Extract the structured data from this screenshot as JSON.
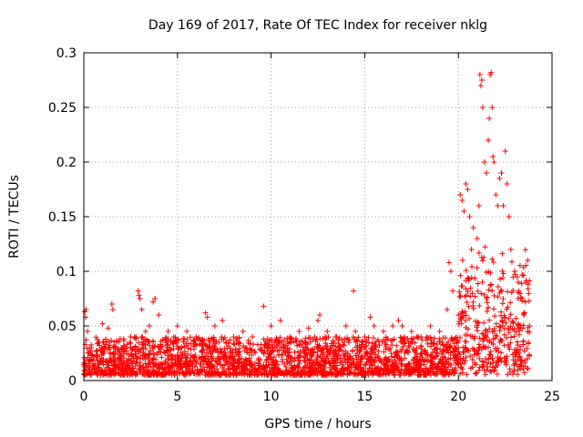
{
  "chart_data": {
    "type": "scatter",
    "title": "Day 169 of 2017, Rate Of TEC Index for receiver nklg",
    "xlabel": "GPS time / hours",
    "ylabel": "ROTI / TECUs",
    "xlim": [
      0,
      25
    ],
    "ylim": [
      0,
      0.3
    ],
    "x_ticks": [
      0,
      5,
      10,
      15,
      20,
      25
    ],
    "y_ticks": [
      0,
      0.05,
      0.1,
      0.15,
      0.2,
      0.25,
      0.3
    ],
    "x_tick_labels": [
      "0",
      "5",
      "10",
      "15",
      "20",
      "25"
    ],
    "y_tick_labels": [
      "0",
      "0.05",
      "0.1",
      "0.15",
      "0.2",
      "0.25",
      "0.3"
    ],
    "grid": true,
    "marker": "+",
    "marker_color": "#ff0000",
    "series": [
      {
        "name": "ROTI",
        "note": "representative sample; dense cloud 0.005-0.04 TECUs from 0 to 23.8 h, enhanced activity 19.5-23.8 h",
        "points": [
          [
            0.05,
            0.063
          ],
          [
            0.1,
            0.058
          ],
          [
            0.12,
            0.065
          ],
          [
            0.2,
            0.045
          ],
          [
            0.4,
            0.03
          ],
          [
            0.8,
            0.035
          ],
          [
            1.0,
            0.052
          ],
          [
            1.3,
            0.048
          ],
          [
            1.5,
            0.07
          ],
          [
            1.55,
            0.065
          ],
          [
            2.0,
            0.03
          ],
          [
            2.5,
            0.04
          ],
          [
            2.9,
            0.082
          ],
          [
            2.95,
            0.078
          ],
          [
            3.0,
            0.075
          ],
          [
            3.1,
            0.065
          ],
          [
            3.3,
            0.045
          ],
          [
            3.5,
            0.05
          ],
          [
            3.7,
            0.072
          ],
          [
            3.8,
            0.075
          ],
          [
            4.0,
            0.06
          ],
          [
            4.5,
            0.045
          ],
          [
            5.0,
            0.05
          ],
          [
            5.5,
            0.045
          ],
          [
            6.0,
            0.04
          ],
          [
            6.5,
            0.062
          ],
          [
            6.6,
            0.058
          ],
          [
            7.0,
            0.05
          ],
          [
            7.4,
            0.055
          ],
          [
            8.0,
            0.04
          ],
          [
            8.5,
            0.045
          ],
          [
            9.0,
            0.04
          ],
          [
            9.6,
            0.068
          ],
          [
            10.0,
            0.05
          ],
          [
            10.5,
            0.055
          ],
          [
            11.0,
            0.04
          ],
          [
            11.5,
            0.045
          ],
          [
            12.0,
            0.048
          ],
          [
            12.5,
            0.055
          ],
          [
            12.6,
            0.06
          ],
          [
            13.0,
            0.045
          ],
          [
            13.5,
            0.04
          ],
          [
            14.0,
            0.05
          ],
          [
            14.4,
            0.082
          ],
          [
            14.5,
            0.045
          ],
          [
            15.0,
            0.04
          ],
          [
            15.3,
            0.058
          ],
          [
            15.5,
            0.05
          ],
          [
            16.0,
            0.045
          ],
          [
            16.5,
            0.05
          ],
          [
            16.8,
            0.055
          ],
          [
            17.0,
            0.05
          ],
          [
            17.5,
            0.045
          ],
          [
            18.0,
            0.04
          ],
          [
            18.5,
            0.05
          ],
          [
            19.0,
            0.045
          ],
          [
            19.4,
            0.065
          ],
          [
            19.5,
            0.108
          ],
          [
            19.6,
            0.1
          ],
          [
            19.7,
            0.082
          ],
          [
            20.0,
            0.06
          ],
          [
            20.1,
            0.17
          ],
          [
            20.2,
            0.165
          ],
          [
            20.3,
            0.155
          ],
          [
            20.4,
            0.18
          ],
          [
            20.5,
            0.175
          ],
          [
            20.6,
            0.15
          ],
          [
            20.7,
            0.12
          ],
          [
            20.8,
            0.14
          ],
          [
            21.0,
            0.13
          ],
          [
            21.1,
            0.16
          ],
          [
            21.15,
            0.28
          ],
          [
            21.2,
            0.27
          ],
          [
            21.25,
            0.275
          ],
          [
            21.3,
            0.25
          ],
          [
            21.4,
            0.2
          ],
          [
            21.5,
            0.19
          ],
          [
            21.6,
            0.22
          ],
          [
            21.65,
            0.24
          ],
          [
            21.7,
            0.28
          ],
          [
            21.75,
            0.282
          ],
          [
            21.8,
            0.25
          ],
          [
            21.85,
            0.205
          ],
          [
            21.9,
            0.2
          ],
          [
            22.0,
            0.17
          ],
          [
            22.1,
            0.16
          ],
          [
            22.2,
            0.185
          ],
          [
            22.3,
            0.19
          ],
          [
            22.4,
            0.16
          ],
          [
            22.5,
            0.21
          ],
          [
            22.6,
            0.18
          ],
          [
            22.7,
            0.15
          ],
          [
            22.8,
            0.12
          ],
          [
            23.0,
            0.1
          ],
          [
            23.2,
            0.09
          ],
          [
            23.4,
            0.075
          ],
          [
            23.5,
            0.06
          ],
          [
            23.6,
            0.09
          ],
          [
            23.7,
            0.11
          ],
          [
            23.8,
            0.05
          ]
        ]
      }
    ]
  }
}
